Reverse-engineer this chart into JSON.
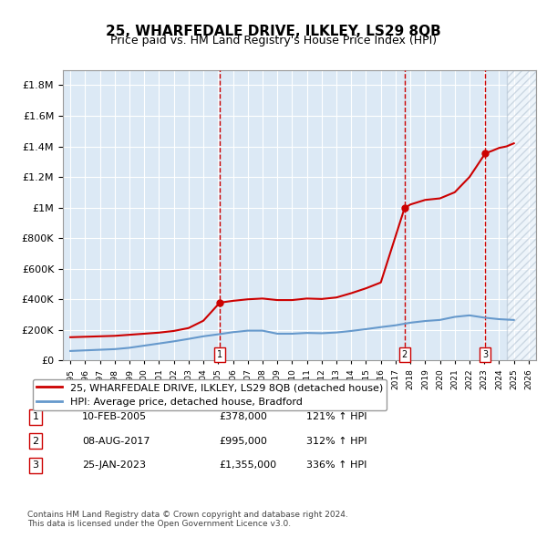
{
  "title": "25, WHARFEDALE DRIVE, ILKLEY, LS29 8QB",
  "subtitle": "Price paid vs. HM Land Registry's House Price Index (HPI)",
  "background_color": "#ffffff",
  "chart_bg_color": "#dce9f5",
  "hatch_color": "#c0d0e8",
  "ylim": [
    0,
    1900000
  ],
  "yticks": [
    0,
    200000,
    400000,
    600000,
    800000,
    1000000,
    1200000,
    1400000,
    1600000,
    1800000
  ],
  "ytick_labels": [
    "£0",
    "£200K",
    "£400K",
    "£600K",
    "£800K",
    "£1M",
    "£1.2M",
    "£1.4M",
    "£1.6M",
    "£1.8M"
  ],
  "xlim_start": 1994.5,
  "xlim_end": 2026.5,
  "xtick_years": [
    1995,
    1996,
    1997,
    1998,
    1999,
    2000,
    2001,
    2002,
    2003,
    2004,
    2005,
    2006,
    2007,
    2008,
    2009,
    2010,
    2011,
    2012,
    2013,
    2014,
    2015,
    2016,
    2017,
    2018,
    2019,
    2020,
    2021,
    2022,
    2023,
    2024,
    2025,
    2026
  ],
  "sale_dates": [
    2005.11,
    2017.6,
    2023.07
  ],
  "sale_prices": [
    378000,
    995000,
    1355000
  ],
  "sale_labels": [
    "1",
    "2",
    "3"
  ],
  "sale_date_strs": [
    "10-FEB-2005",
    "08-AUG-2017",
    "25-JAN-2023"
  ],
  "sale_price_strs": [
    "£378,000",
    "£995,000",
    "£1,355,000"
  ],
  "sale_hpi_strs": [
    "121% ↑ HPI",
    "312% ↑ HPI",
    "336% ↑ HPI"
  ],
  "red_line_color": "#cc0000",
  "blue_line_color": "#6699cc",
  "vline_color": "#cc0000",
  "legend_label_red": "25, WHARFEDALE DRIVE, ILKLEY, LS29 8QB (detached house)",
  "legend_label_blue": "HPI: Average price, detached house, Bradford",
  "footer_text": "Contains HM Land Registry data © Crown copyright and database right 2024.\nThis data is licensed under the Open Government Licence v3.0.",
  "hpi_years": [
    1995,
    1996,
    1997,
    1998,
    1999,
    2000,
    2001,
    2002,
    2003,
    2004,
    2005,
    2006,
    2007,
    2008,
    2009,
    2010,
    2011,
    2012,
    2013,
    2014,
    2015,
    2016,
    2017,
    2018,
    2019,
    2020,
    2021,
    2022,
    2023,
    2024,
    2025
  ],
  "hpi_values": [
    62000,
    66000,
    70000,
    74000,
    83000,
    97000,
    111000,
    125000,
    141000,
    158000,
    171000,
    185000,
    195000,
    195000,
    175000,
    175000,
    180000,
    178000,
    183000,
    193000,
    205000,
    218000,
    230000,
    247000,
    258000,
    265000,
    285000,
    295000,
    280000,
    270000,
    265000
  ],
  "red_line_years": [
    1995,
    1996,
    1997,
    1998,
    1999,
    2000,
    2001,
    2002,
    2003,
    2004,
    2005.11,
    2006,
    2007,
    2008,
    2009,
    2010,
    2011,
    2012,
    2013,
    2014,
    2015,
    2016,
    2017.6,
    2018,
    2019,
    2020,
    2021,
    2022,
    2023.07,
    2023.5,
    2024,
    2024.5,
    2025
  ],
  "red_line_values": [
    152000,
    155000,
    158000,
    161000,
    168000,
    175000,
    182000,
    193000,
    212000,
    260000,
    378000,
    390000,
    400000,
    405000,
    395000,
    395000,
    405000,
    402000,
    412000,
    440000,
    472000,
    510000,
    995000,
    1020000,
    1050000,
    1060000,
    1100000,
    1200000,
    1355000,
    1370000,
    1390000,
    1400000,
    1420000
  ]
}
